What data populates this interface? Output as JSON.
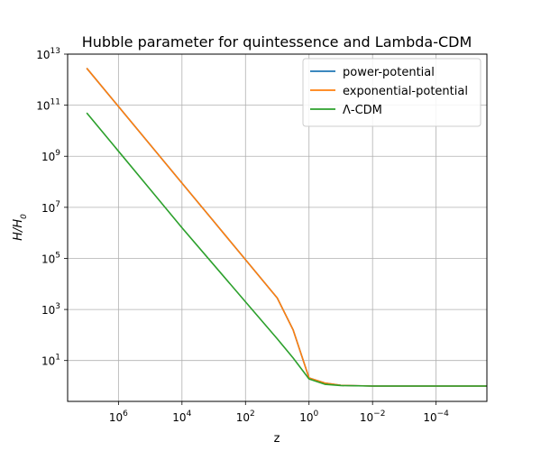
{
  "chart_data": {
    "type": "line",
    "title": "Hubble parameter for quintessence and Lambda-CDM",
    "xlabel": "z",
    "ylabel_base": "H/H",
    "ylabel_sub": "0",
    "x_scale": "log",
    "y_scale": "log",
    "x_inverted": true,
    "xlim_exp": [
      7.6,
      -5.6
    ],
    "ylim_exp": [
      -0.6,
      13.0
    ],
    "grid": true,
    "legend_position": "top-right",
    "x_ticks": [
      {
        "base": "10",
        "exp": "6",
        "value": 1000000
      },
      {
        "base": "10",
        "exp": "4",
        "value": 10000
      },
      {
        "base": "10",
        "exp": "2",
        "value": 100
      },
      {
        "base": "10",
        "exp": "0",
        "value": 1
      },
      {
        "base": "10",
        "exp": "−2",
        "value": 0.01
      },
      {
        "base": "10",
        "exp": "−4",
        "value": 0.0001
      }
    ],
    "y_ticks": [
      {
        "base": "10",
        "exp": "1",
        "value": 10
      },
      {
        "base": "10",
        "exp": "3",
        "value": 1000
      },
      {
        "base": "10",
        "exp": "5",
        "value": 100000
      },
      {
        "base": "10",
        "exp": "7",
        "value": 10000000
      },
      {
        "base": "10",
        "exp": "9",
        "value": 1000000000
      },
      {
        "base": "10",
        "exp": "11",
        "value": 100000000000
      },
      {
        "base": "10",
        "exp": "13",
        "value": 10000000000000
      }
    ],
    "series": [
      {
        "name": "power-potential",
        "color": "#1f77b4",
        "points": [
          [
            7.0,
            12.45
          ],
          [
            6.0,
            10.95
          ],
          [
            5.0,
            9.45
          ],
          [
            4.0,
            7.95
          ],
          [
            3.0,
            6.45
          ],
          [
            2.0,
            4.95
          ],
          [
            1.0,
            3.45
          ],
          [
            0.5,
            2.2
          ],
          [
            0.0,
            0.32
          ],
          [
            -0.5,
            0.12
          ],
          [
            -1.0,
            0.03
          ],
          [
            -2.0,
            0.0
          ],
          [
            -3.0,
            0.0
          ],
          [
            -4.0,
            0.0
          ],
          [
            -5.6,
            0.0
          ]
        ]
      },
      {
        "name": "exponential-potential",
        "color": "#ff7f0e",
        "points": [
          [
            7.0,
            12.45
          ],
          [
            6.0,
            10.95
          ],
          [
            5.0,
            9.45
          ],
          [
            4.0,
            7.95
          ],
          [
            3.0,
            6.45
          ],
          [
            2.0,
            4.95
          ],
          [
            1.0,
            3.45
          ],
          [
            0.5,
            2.2
          ],
          [
            0.0,
            0.32
          ],
          [
            -0.5,
            0.12
          ],
          [
            -1.0,
            0.03
          ],
          [
            -2.0,
            0.0
          ],
          [
            -3.0,
            0.0
          ],
          [
            -4.0,
            0.0
          ],
          [
            -5.6,
            0.0
          ]
        ]
      },
      {
        "name": "Λ-CDM",
        "color": "#2ca02c",
        "points": [
          [
            7.0,
            10.7
          ],
          [
            6.0,
            9.2
          ],
          [
            5.0,
            7.7
          ],
          [
            4.0,
            6.2
          ],
          [
            3.0,
            4.75
          ],
          [
            2.0,
            3.3
          ],
          [
            1.0,
            1.85
          ],
          [
            0.5,
            1.1
          ],
          [
            0.0,
            0.28
          ],
          [
            -0.5,
            0.07
          ],
          [
            -1.0,
            0.02
          ],
          [
            -2.0,
            0.0
          ],
          [
            -3.0,
            0.0
          ],
          [
            -4.0,
            0.0
          ],
          [
            -5.6,
            0.0
          ]
        ]
      }
    ]
  }
}
